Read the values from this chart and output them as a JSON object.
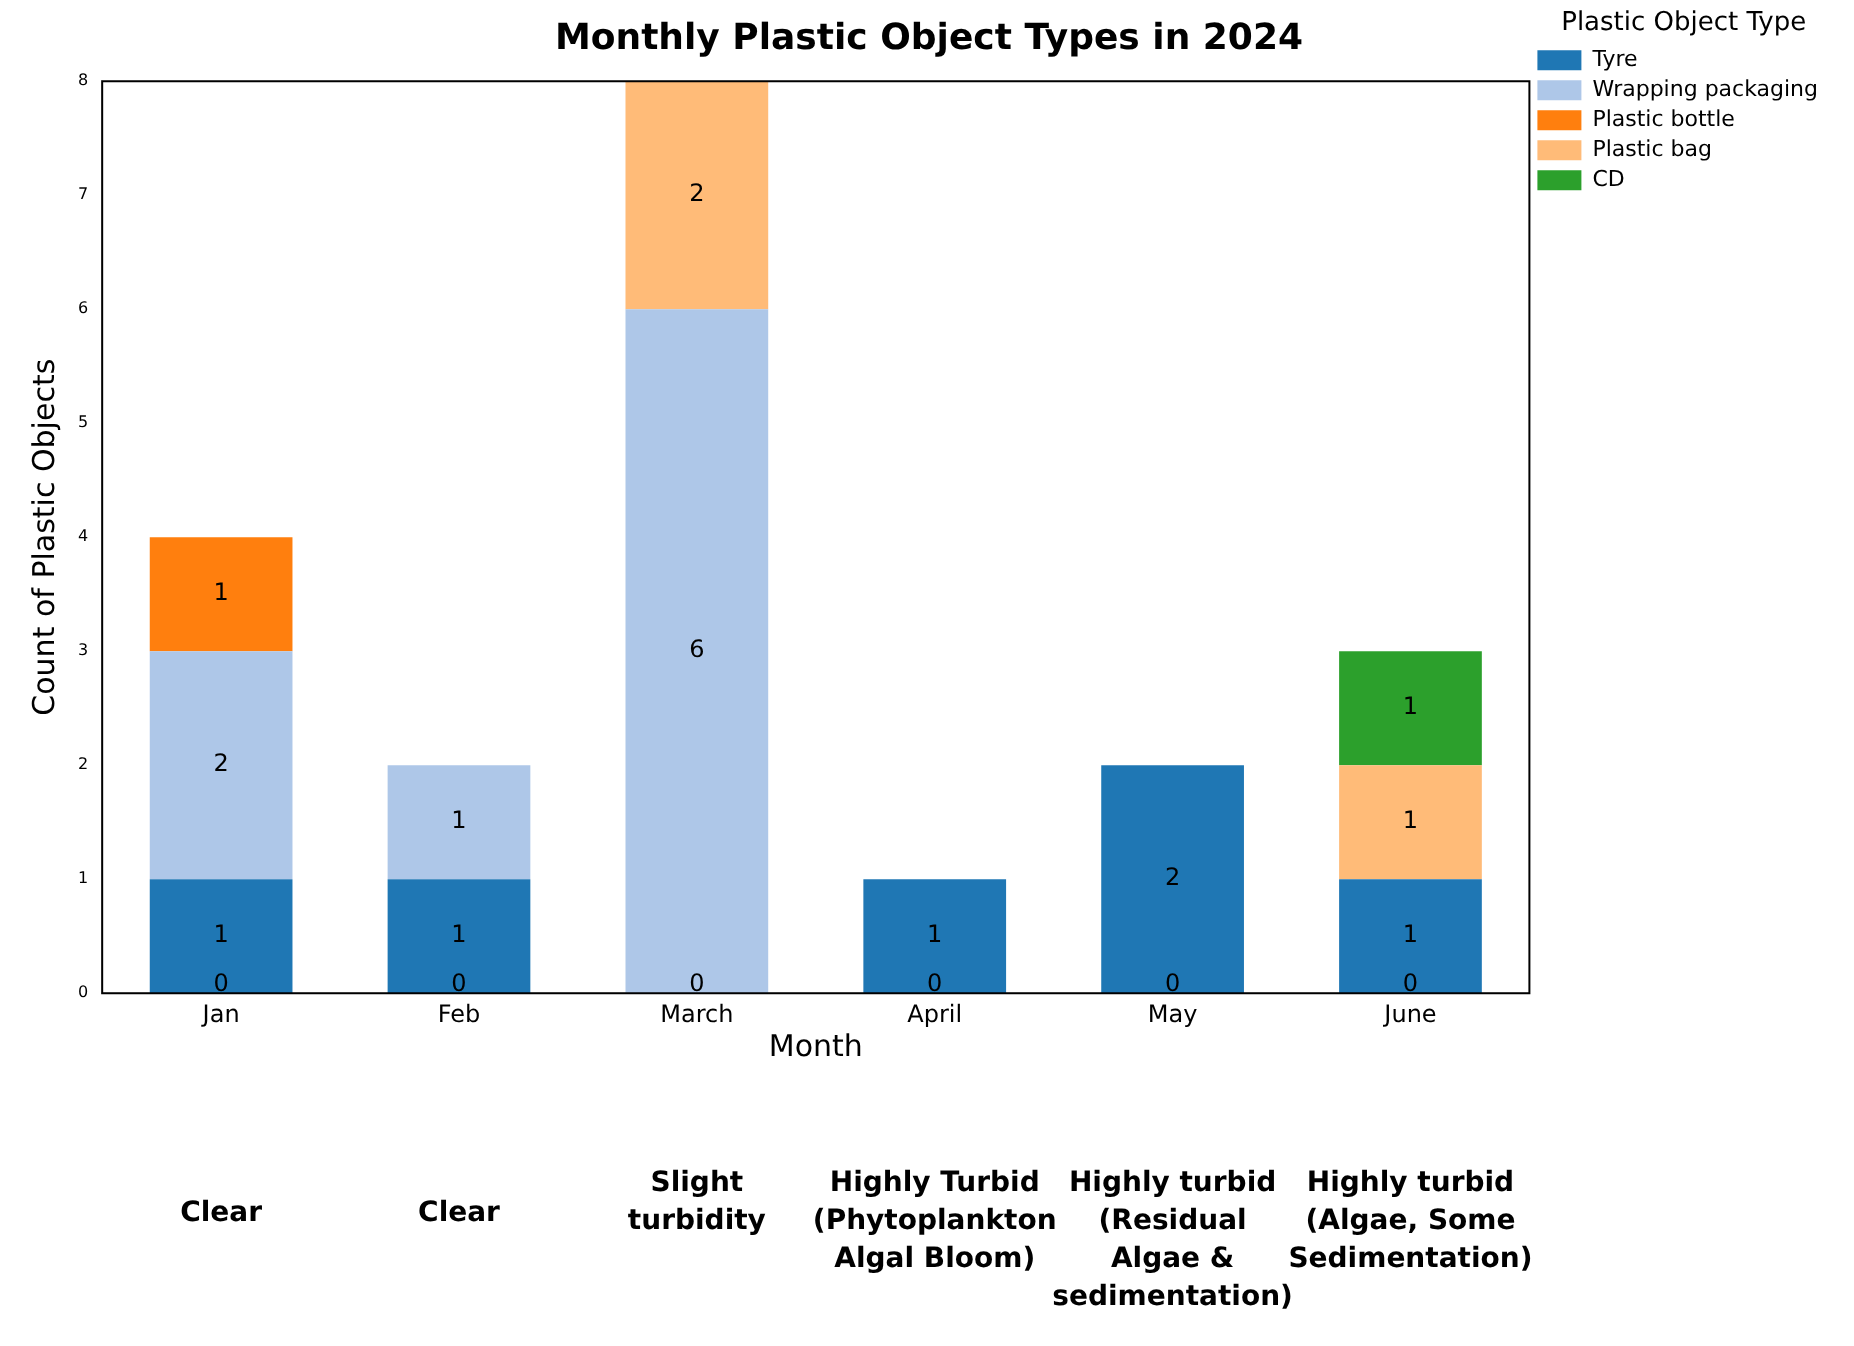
{
  "chart_data": {
    "type": "bar",
    "stacked": true,
    "title": "Monthly Plastic Object Types in 2024",
    "xlabel": "Month",
    "ylabel": "Count of Plastic Objects",
    "legend_title": "Plastic Object Type",
    "legend": "top right",
    "categories": [
      "Jan",
      "Feb",
      "March",
      "April",
      "May",
      "June"
    ],
    "ylim": [
      0,
      8
    ],
    "yticks": [
      0,
      1,
      2,
      3,
      4,
      5,
      6,
      7,
      8
    ],
    "series": [
      {
        "name": "Tyre",
        "color": "#1f77b4",
        "values": [
          1,
          1,
          0,
          1,
          2,
          1
        ],
        "value_labels": [
          "1",
          "1",
          null,
          "1",
          "2",
          "1"
        ]
      },
      {
        "name": "Wrapping packaging",
        "color": "#aec7e8",
        "values": [
          2,
          1,
          6,
          0,
          0,
          0
        ],
        "value_labels": [
          "2",
          "1",
          "6",
          null,
          null,
          null
        ]
      },
      {
        "name": "Plastic bottle",
        "color": "#ff7f0e",
        "values": [
          1,
          0,
          0,
          0,
          0,
          0
        ],
        "value_labels": [
          "1",
          null,
          null,
          null,
          null,
          null
        ]
      },
      {
        "name": "Plastic bag",
        "color": "#ffbb78",
        "values": [
          0,
          0,
          2,
          0,
          0,
          1
        ],
        "value_labels": [
          null,
          null,
          "2",
          null,
          null,
          "1"
        ]
      },
      {
        "name": "CD",
        "color": "#2ca02c",
        "values": [
          0,
          0,
          0,
          0,
          0,
          1
        ],
        "value_labels": [
          null,
          null,
          null,
          null,
          null,
          "1"
        ]
      }
    ],
    "annotations": [
      {
        "text": "0",
        "x": "Jan",
        "y": 0
      },
      {
        "text": "0",
        "x": "Feb",
        "y": 0
      },
      {
        "text": "0",
        "x": "March",
        "y": 0
      },
      {
        "text": "0",
        "x": "April",
        "y": 0
      },
      {
        "text": "0",
        "x": "May",
        "y": 0
      },
      {
        "text": "0",
        "x": "June",
        "y": 0
      },
      "Clear",
      "Clear",
      "Slight turbidity",
      "Highly Turbid (Phytoplankton Algal Bloom)",
      "Highly turbid (Residual Algae & sedimentation)",
      "Highly turbid (Algae, Some Sedimentation)"
    ]
  }
}
